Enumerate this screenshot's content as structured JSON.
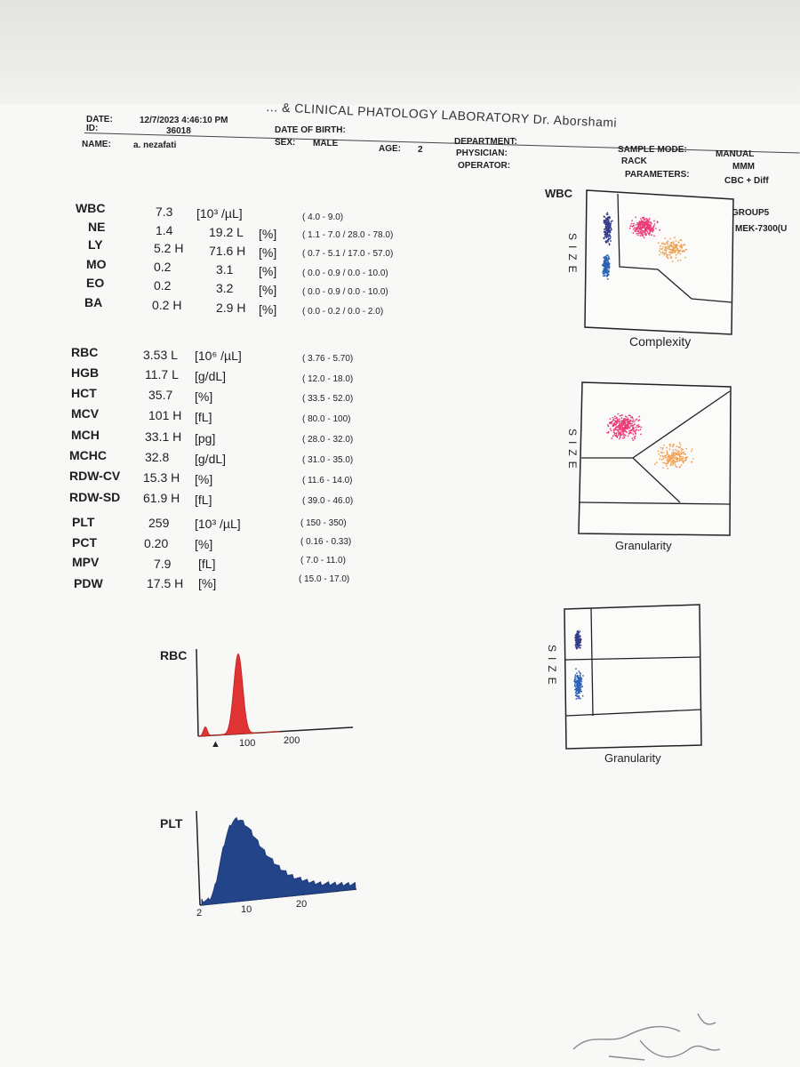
{
  "header": {
    "lab_title": "... & CLINICAL PHATOLOGY LABORATORY Dr. Aborshami",
    "date_label": "DATE:",
    "date_value": "12/7/2023 4:46:10 PM",
    "id_label": "ID:",
    "id_value": "36018",
    "dob_label": "DATE OF BIRTH:",
    "name_label": "NAME:",
    "name_value": "a. nezafati",
    "sex_label": "SEX:",
    "sex_value": "MALE",
    "age_label": "AGE:",
    "age_value": "2",
    "department_label": "DEPARTMENT:",
    "physician_label": "PHYSICIAN:",
    "operator_label": "OPERATOR:",
    "sample_mode_label": "SAMPLE MODE:",
    "sample_mode_value": "MANUAL",
    "rack_label": "RACK",
    "rack_value": "MMM",
    "parameters_label": "PARAMETERS:",
    "parameters_value": "CBC + Diff",
    "group_value": "GROUP5",
    "analyzer_value": "MEK-7300(U"
  },
  "wbc_rows": [
    {
      "name": "WBC",
      "value": "7.3",
      "unit": "[10³ /µL]",
      "range": "(  4.0 -      9.0)"
    },
    {
      "name": "NE",
      "value": "1.4",
      "pct": "19.2 L",
      "unit": "[%]",
      "range": "(  1.1 -      7.0 /  28.0 -   78.0)"
    },
    {
      "name": "LY",
      "value": "5.2 H",
      "pct": "71.6 H",
      "unit": "[%]",
      "range": "(  0.7 -      5.1 /  17.0 -   57.0)"
    },
    {
      "name": "MO",
      "value": "0.2",
      "pct": "3.1",
      "unit": "[%]",
      "range": "(  0.0 -      0.9 /    0.0 -   10.0)"
    },
    {
      "name": "EO",
      "value": "0.2",
      "pct": "3.2",
      "unit": "[%]",
      "range": "(  0.0 -      0.9 /    0.0 -   10.0)"
    },
    {
      "name": "BA",
      "value": "0.2 H",
      "pct": "2.9 H",
      "unit": "[%]",
      "range": "(  0.0 -      0.2 /    0.0 -     2.0)"
    }
  ],
  "rbc_rows": [
    {
      "name": "RBC",
      "value": "3.53 L",
      "unit": "[10⁶ /µL]",
      "range": "( 3.76 -   5.70)"
    },
    {
      "name": "HGB",
      "value": "11.7 L",
      "unit": "[g/dL]",
      "range": "( 12.0 -   18.0)"
    },
    {
      "name": "HCT",
      "value": "35.7",
      "unit": "[%]",
      "range": "( 33.5 -   52.0)"
    },
    {
      "name": "MCV",
      "value": "101 H",
      "unit": "[fL]",
      "range": "( 80.0 -    100)"
    },
    {
      "name": "MCH",
      "value": "33.1 H",
      "unit": "[pg]",
      "range": "( 28.0 -   32.0)"
    },
    {
      "name": "MCHC",
      "value": "32.8",
      "unit": "[g/dL]",
      "range": "( 31.0 -   35.0)"
    },
    {
      "name": "RDW-CV",
      "value": "15.3 H",
      "unit": "[%]",
      "range": "( 11.6 -   14.0)"
    },
    {
      "name": "RDW-SD",
      "value": "61.9 H",
      "unit": "[fL]",
      "range": "( 39.0 -   46.0)"
    }
  ],
  "plt_rows": [
    {
      "name": "PLT",
      "value": "259",
      "unit": "[10³ /µL]",
      "range": "(  150 -    350)"
    },
    {
      "name": "PCT",
      "value": "0.20",
      "unit": "[%]",
      "range": "( 0.16 -   0.33)"
    },
    {
      "name": "MPV",
      "value": "7.9",
      "unit": "[fL]",
      "range": "(  7.0 -   11.0)"
    },
    {
      "name": "PDW",
      "value": "17.5 H",
      "unit": "[%]",
      "range": "( 15.0 -   17.0)"
    }
  ],
  "scatter1": {
    "title": "WBC",
    "ylabel": "SIZE",
    "xlabel": "Complexity"
  },
  "scatter2": {
    "ylabel": "SIZE",
    "xlabel": "Granularity"
  },
  "scatter3": {
    "ylabel": "SIZE",
    "xlabel": "Granularity"
  },
  "rbc_hist": {
    "title": "RBC",
    "ticks": [
      "100",
      "200"
    ],
    "color": "#e03434"
  },
  "plt_hist": {
    "title": "PLT",
    "ticks": [
      "2",
      "10",
      "20"
    ],
    "color": "#24448a"
  },
  "colors": {
    "pink": "#ee3c78",
    "orange": "#f0a050",
    "blue": "#2d63b4",
    "navy": "#323c8c"
  }
}
